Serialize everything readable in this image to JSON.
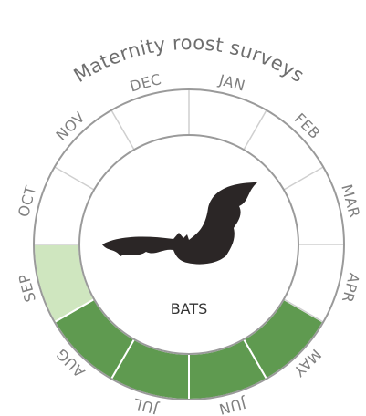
{
  "title": "Maternity roost surveys",
  "center_label": "BATS",
  "months": [
    {
      "label": "JAN",
      "color": "#ffffff"
    },
    {
      "label": "FEB",
      "color": "#ffffff"
    },
    {
      "label": "MAR",
      "color": "#ffffff"
    },
    {
      "label": "APR",
      "color": "#ffffff"
    },
    {
      "label": "MAY",
      "color": "#5f9a50"
    },
    {
      "label": "JUN",
      "color": "#5f9a50"
    },
    {
      "label": "JUL",
      "color": "#5f9a50"
    },
    {
      "label": "AUG",
      "color": "#5f9a50"
    },
    {
      "label": "SEP",
      "color": "#cfe6bf"
    },
    {
      "label": "OCT",
      "color": "#ffffff"
    },
    {
      "label": "NOV",
      "color": "#ffffff"
    },
    {
      "label": "DEC",
      "color": "#ffffff"
    }
  ]
}
